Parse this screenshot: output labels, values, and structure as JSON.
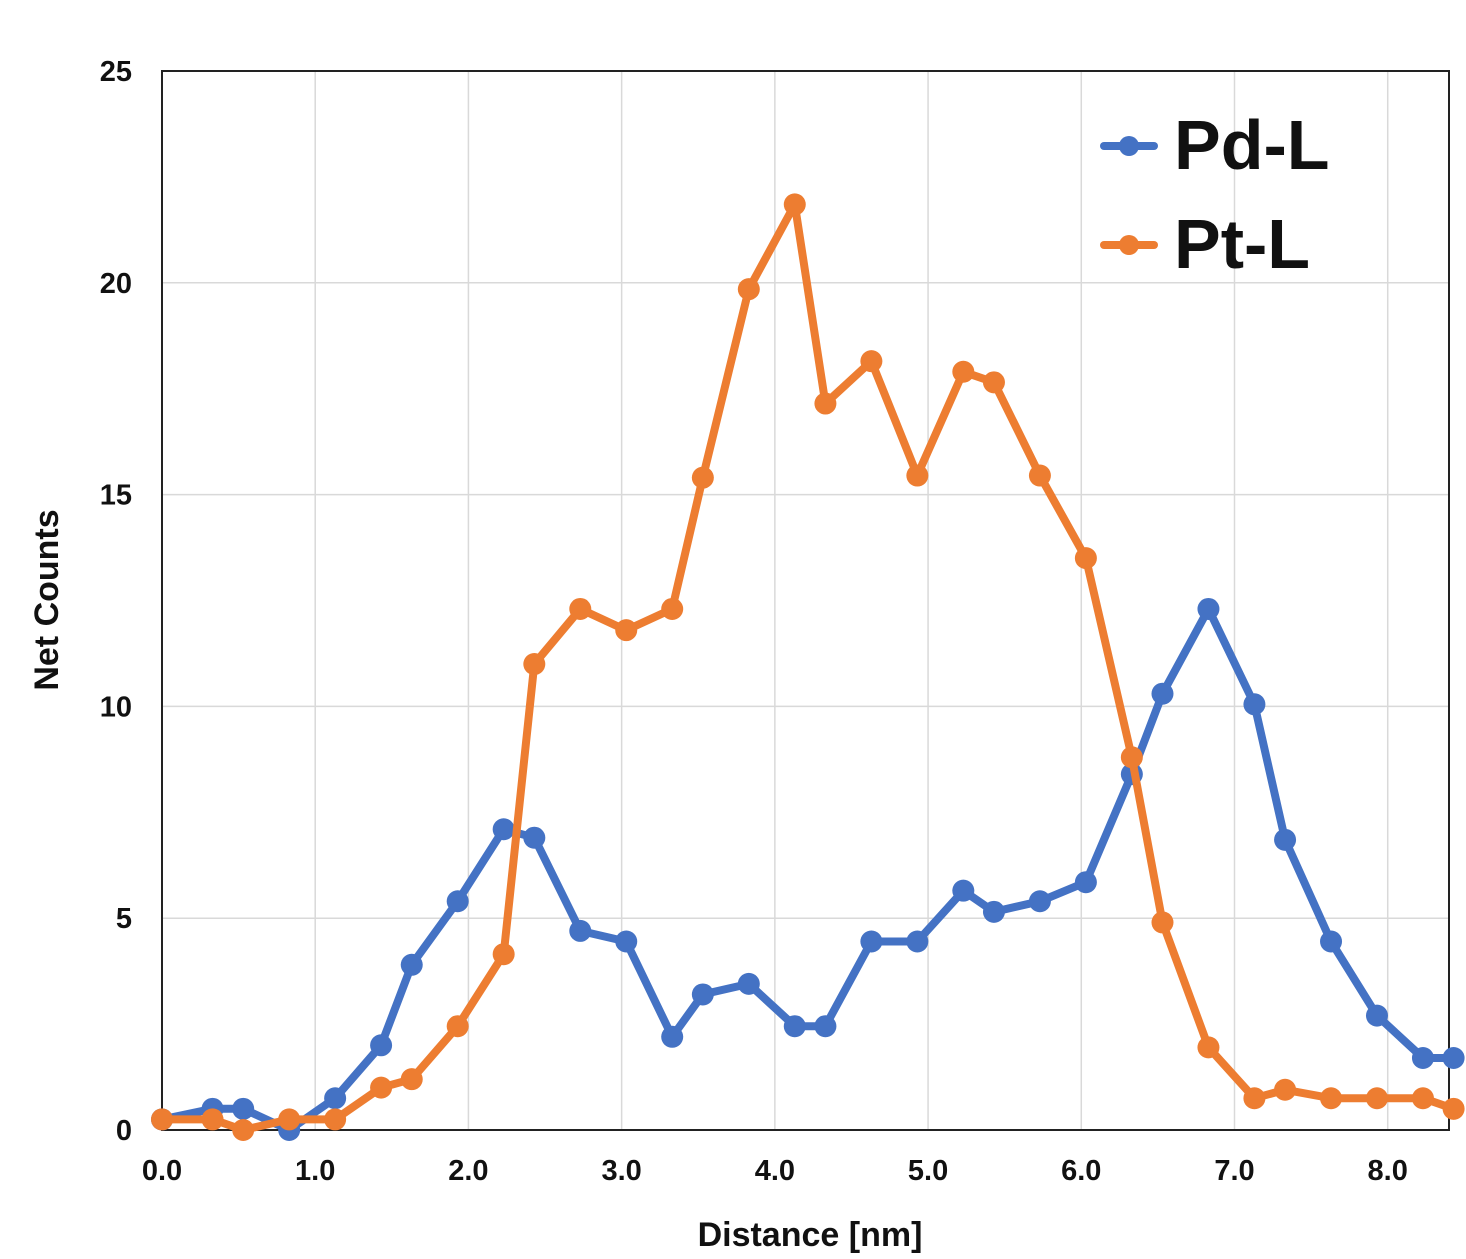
{
  "chart_data": {
    "type": "line",
    "xlabel": "Distance [nm]",
    "ylabel": "Net Counts",
    "xlim": [
      0,
      8.4
    ],
    "ylim": [
      0,
      25
    ],
    "x_ticks": [
      0,
      1,
      2,
      3,
      4,
      5,
      6,
      7,
      8
    ],
    "x_tick_labels": [
      "0.0",
      "1.0",
      "2.0",
      "3.0",
      "4.0",
      "5.0",
      "6.0",
      "7.0",
      "8.0"
    ],
    "y_ticks": [
      0,
      5,
      10,
      15,
      20,
      25
    ],
    "y_tick_labels": [
      "0",
      "5",
      "10",
      "15",
      "20",
      "25"
    ],
    "grid": true,
    "legend_position": "top-right",
    "series": [
      {
        "name": "Pd-L",
        "color": "#4472c4",
        "points": [
          [
            0.0,
            0.25
          ],
          [
            0.33,
            0.5
          ],
          [
            0.53,
            0.5
          ],
          [
            0.83,
            0.0
          ],
          [
            1.13,
            0.75
          ],
          [
            1.43,
            2.0
          ],
          [
            1.63,
            3.9
          ],
          [
            1.93,
            5.4
          ],
          [
            2.23,
            7.1
          ],
          [
            2.43,
            6.9
          ],
          [
            2.73,
            4.7
          ],
          [
            3.03,
            4.45
          ],
          [
            3.33,
            2.2
          ],
          [
            3.53,
            3.2
          ],
          [
            3.83,
            3.45
          ],
          [
            4.13,
            2.45
          ],
          [
            4.33,
            2.45
          ],
          [
            4.63,
            4.45
          ],
          [
            4.93,
            4.45
          ],
          [
            5.23,
            5.65
          ],
          [
            5.43,
            5.15
          ],
          [
            5.73,
            5.4
          ],
          [
            6.03,
            5.85
          ],
          [
            6.33,
            8.4
          ],
          [
            6.53,
            10.3
          ],
          [
            6.83,
            12.3
          ],
          [
            7.13,
            10.05
          ],
          [
            7.33,
            6.85
          ],
          [
            7.63,
            4.45
          ],
          [
            7.93,
            2.7
          ],
          [
            8.23,
            1.7
          ],
          [
            8.43,
            1.7
          ]
        ]
      },
      {
        "name": "Pt-L",
        "color": "#ed7d31",
        "points": [
          [
            0.0,
            0.25
          ],
          [
            0.33,
            0.25
          ],
          [
            0.53,
            0.0
          ],
          [
            0.83,
            0.25
          ],
          [
            1.13,
            0.25
          ],
          [
            1.43,
            1.0
          ],
          [
            1.63,
            1.2
          ],
          [
            1.93,
            2.45
          ],
          [
            2.23,
            4.15
          ],
          [
            2.43,
            11.0
          ],
          [
            2.73,
            12.3
          ],
          [
            3.03,
            11.8
          ],
          [
            3.33,
            12.3
          ],
          [
            3.53,
            15.4
          ],
          [
            3.83,
            19.85
          ],
          [
            4.13,
            21.85
          ],
          [
            4.33,
            17.15
          ],
          [
            4.63,
            18.15
          ],
          [
            4.93,
            15.45
          ],
          [
            5.23,
            17.9
          ],
          [
            5.43,
            17.65
          ],
          [
            5.73,
            15.45
          ],
          [
            6.03,
            13.5
          ],
          [
            6.33,
            8.8
          ],
          [
            6.53,
            4.9
          ],
          [
            6.83,
            1.95
          ],
          [
            7.13,
            0.75
          ],
          [
            7.33,
            0.95
          ],
          [
            7.63,
            0.75
          ],
          [
            7.93,
            0.75
          ],
          [
            8.23,
            0.75
          ],
          [
            8.43,
            0.5
          ]
        ]
      }
    ]
  }
}
